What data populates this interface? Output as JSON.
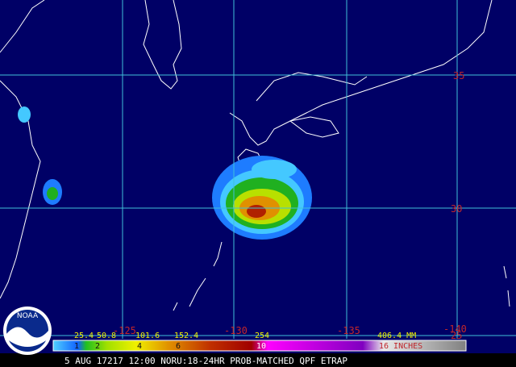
{
  "map": {
    "lat_labels": [
      "35",
      "30",
      "25"
    ],
    "lon_labels": [
      "-125",
      "-130",
      "-135",
      "-140"
    ],
    "colorbar": {
      "mm_labels": [
        "25.4",
        "50.8",
        "101.6",
        "152.4",
        "254",
        "406.4 MM"
      ],
      "inch_labels": [
        "1",
        "2",
        "4",
        "6",
        "10",
        "16 INCHES"
      ]
    },
    "logo": "NOAA",
    "caption": "5 AUG 17217 12:00 NORU:18-24HR PROB-MATCHED QPF ETRAP"
  }
}
